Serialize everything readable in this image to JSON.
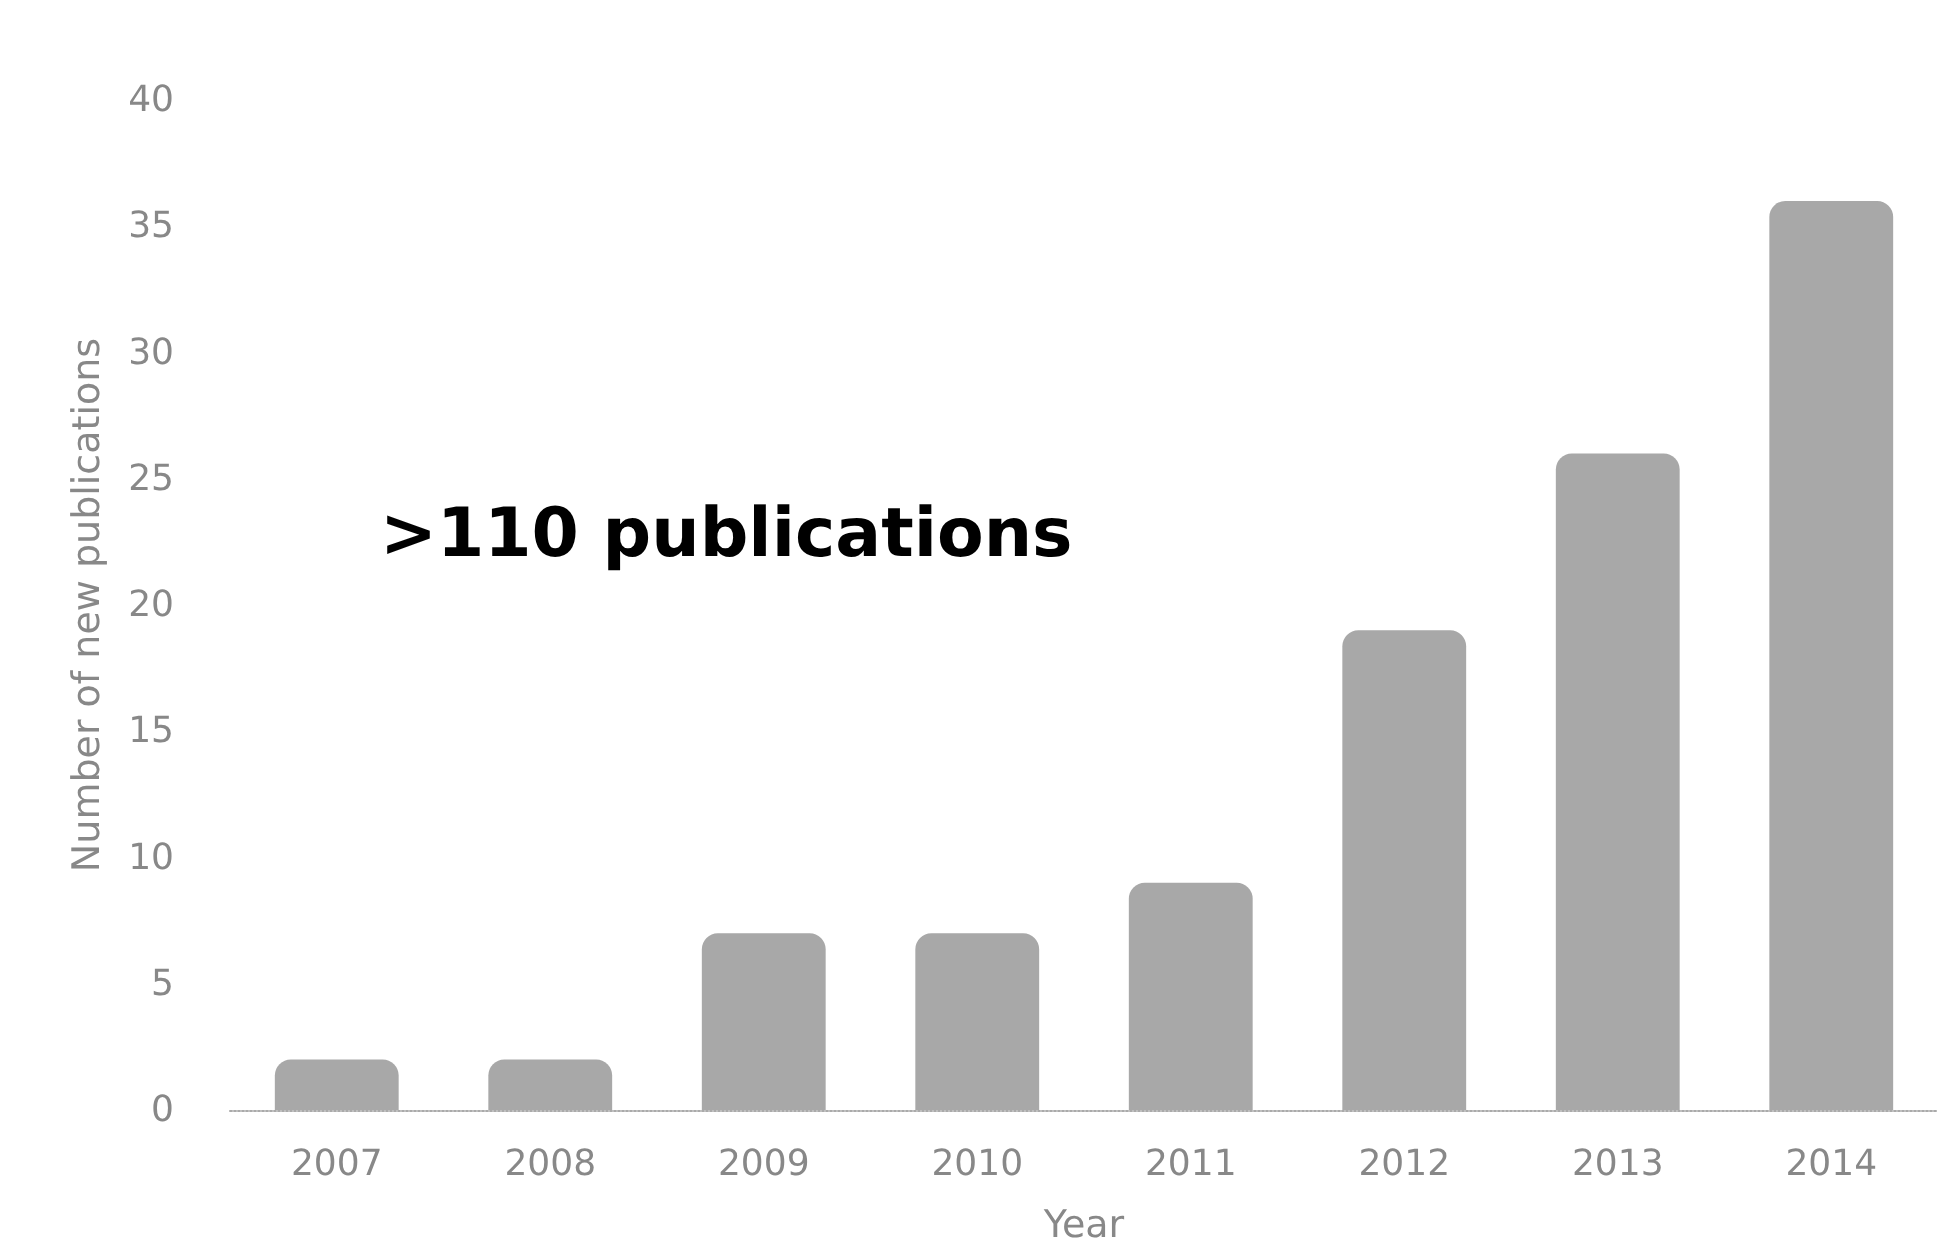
{
  "chart_data": {
    "type": "bar",
    "xlabel": "Year",
    "ylabel": "Number of new publications",
    "categories": [
      "2007",
      "2008",
      "2009",
      "2010",
      "2011",
      "2012",
      "2013",
      "2014"
    ],
    "values": [
      2,
      2,
      7,
      7,
      9,
      19,
      26,
      36
    ],
    "color": "#a8a8a8",
    "ylim": [
      0,
      40
    ],
    "yticks": [
      0,
      5,
      10,
      15,
      20,
      25,
      30,
      35,
      40
    ],
    "grid": false,
    "annotations": [
      ">110 publications"
    ]
  }
}
